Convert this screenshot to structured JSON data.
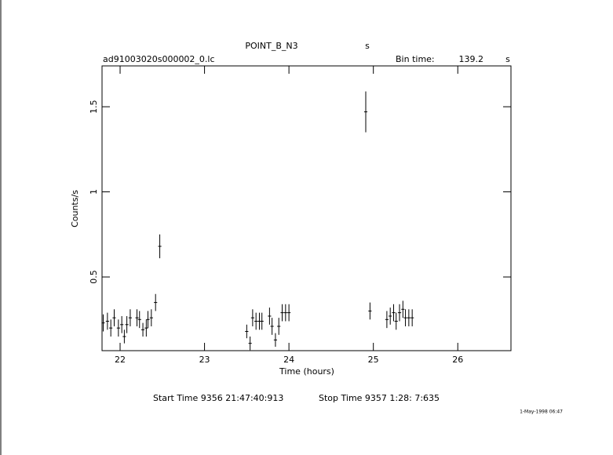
{
  "chart_data": {
    "type": "errorbar",
    "title": "POINT_B_N3",
    "title_unit": "s",
    "filename": "ad91003020s000002_0.lc",
    "bin_label": "Bin time:",
    "bin_value": "139.2",
    "bin_unit": "s",
    "xlabel": "Time (hours)",
    "ylabel": "Counts/s",
    "start_time": "Start Time  9356 21:47:40:913",
    "stop_time": "Stop Time  9357  1:28: 7:635",
    "date": "1-May-1998 06:47",
    "x": [
      21.8,
      21.85,
      21.89,
      21.93,
      21.98,
      22.02,
      22.05,
      22.08,
      22.12,
      22.2,
      22.23,
      22.27,
      22.31,
      22.33,
      22.37,
      22.42,
      22.47,
      23.5,
      23.54,
      23.57,
      23.61,
      23.65,
      23.68,
      23.77,
      23.8,
      23.84,
      23.88,
      23.92,
      23.96,
      24.0,
      24.91,
      24.96,
      25.16,
      25.2,
      25.24,
      25.27,
      25.31,
      25.35,
      25.38,
      25.42,
      25.46
    ],
    "values": [
      0.23,
      0.24,
      0.2,
      0.26,
      0.2,
      0.22,
      0.15,
      0.22,
      0.26,
      0.26,
      0.25,
      0.19,
      0.2,
      0.25,
      0.26,
      0.35,
      0.68,
      0.18,
      0.11,
      0.26,
      0.24,
      0.24,
      0.24,
      0.27,
      0.21,
      0.13,
      0.21,
      0.29,
      0.29,
      0.29,
      1.47,
      0.3,
      0.25,
      0.27,
      0.29,
      0.24,
      0.29,
      0.31,
      0.26,
      0.26,
      0.26
    ],
    "errors": [
      0.05,
      0.05,
      0.05,
      0.05,
      0.05,
      0.05,
      0.04,
      0.05,
      0.05,
      0.05,
      0.05,
      0.04,
      0.05,
      0.05,
      0.05,
      0.05,
      0.07,
      0.04,
      0.04,
      0.05,
      0.05,
      0.05,
      0.05,
      0.05,
      0.05,
      0.04,
      0.05,
      0.05,
      0.05,
      0.05,
      0.12,
      0.05,
      0.05,
      0.05,
      0.05,
      0.05,
      0.05,
      0.05,
      0.05,
      0.05,
      0.05
    ],
    "bin_width": 0.0387,
    "color": "#000000",
    "xlim": [
      21.786,
      26.63
    ],
    "ylim": [
      0.067,
      1.74
    ],
    "xticks": [
      22,
      23,
      24,
      25,
      26
    ],
    "yticks": [
      0.5,
      1,
      1.5
    ]
  }
}
